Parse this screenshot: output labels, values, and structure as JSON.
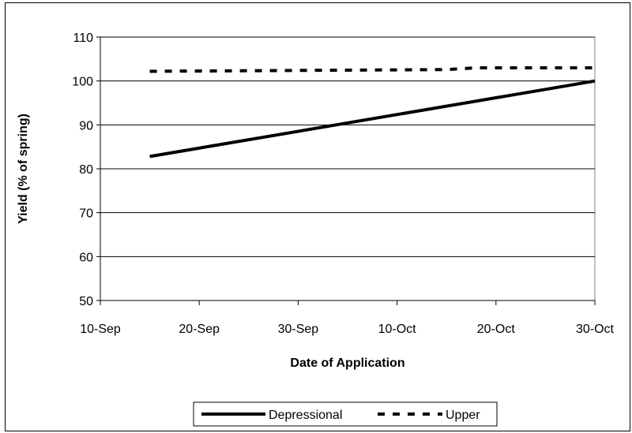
{
  "chart_data": {
    "type": "line",
    "xlabel": "Date of Application",
    "ylabel": "Yield (% of spring)",
    "x_ticks": [
      "10-Sep",
      "20-Sep",
      "30-Sep",
      "10-Oct",
      "20-Oct",
      "30-Oct"
    ],
    "xlim": [
      "10-Sep",
      "30-Oct"
    ],
    "ylim": [
      50,
      110
    ],
    "y_ticks": [
      50,
      60,
      70,
      80,
      90,
      100,
      110
    ],
    "grid": "horizontal",
    "legend": "bottom",
    "series": [
      {
        "name": "Depressional",
        "style": "solid",
        "color": "#000000",
        "points": [
          {
            "x": "15-Sep",
            "y": 82.8
          },
          {
            "x": "30-Oct",
            "y": 100.0
          }
        ]
      },
      {
        "name": "Upper",
        "style": "dashed",
        "color": "#000000",
        "points": [
          {
            "x": "15-Sep",
            "y": 102.2
          },
          {
            "x": "15-Oct",
            "y": 102.6
          },
          {
            "x": "18-Oct",
            "y": 103.0
          },
          {
            "x": "30-Oct",
            "y": 103.0
          }
        ]
      }
    ]
  }
}
